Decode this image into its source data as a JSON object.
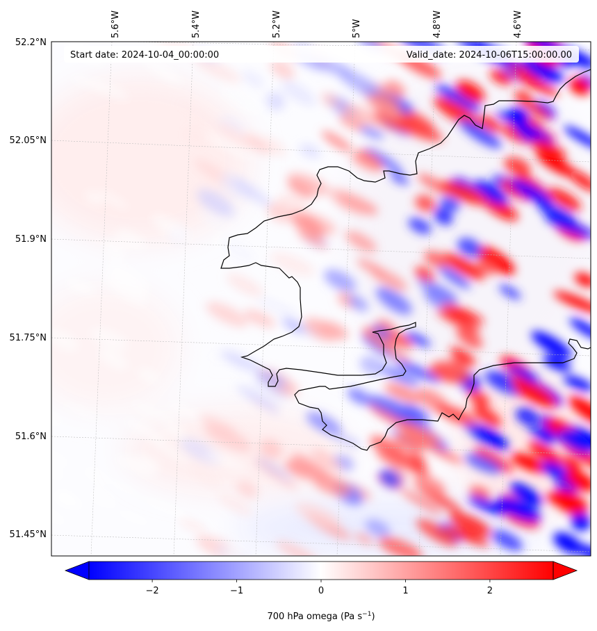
{
  "header": {
    "start_date": "Start date: 2024-10-04_00:00:00",
    "valid_date": "Valid_date: 2024-10-06T15:00:00.00"
  },
  "map": {
    "field": "700 hPa omega",
    "lon_ticks": [
      "5.6°W",
      "5.4°W",
      "5.2°W",
      "5°W",
      "4.8°W",
      "4.6°W"
    ],
    "lat_ticks": [
      "52.2°N",
      "52.05°N",
      "51.9°N",
      "51.75°N",
      "51.6°N",
      "51.45°N"
    ],
    "coastline_color": "#000000",
    "gridline_color": "#bdbdbd"
  },
  "colorbar": {
    "label_main": "700 hPa omega (Pa s",
    "label_sup": "−1",
    "label_close": ")",
    "min": -2.75,
    "max": 2.75,
    "ticks": [
      -2,
      -1,
      0,
      1,
      2
    ],
    "tick_labels": [
      "−2",
      "−1",
      "0",
      "1",
      "2"
    ],
    "colormap": "bwr",
    "low_color": "#0000ff",
    "mid_color": "#ffffff",
    "high_color": "#ff0000",
    "extend": "both"
  }
}
